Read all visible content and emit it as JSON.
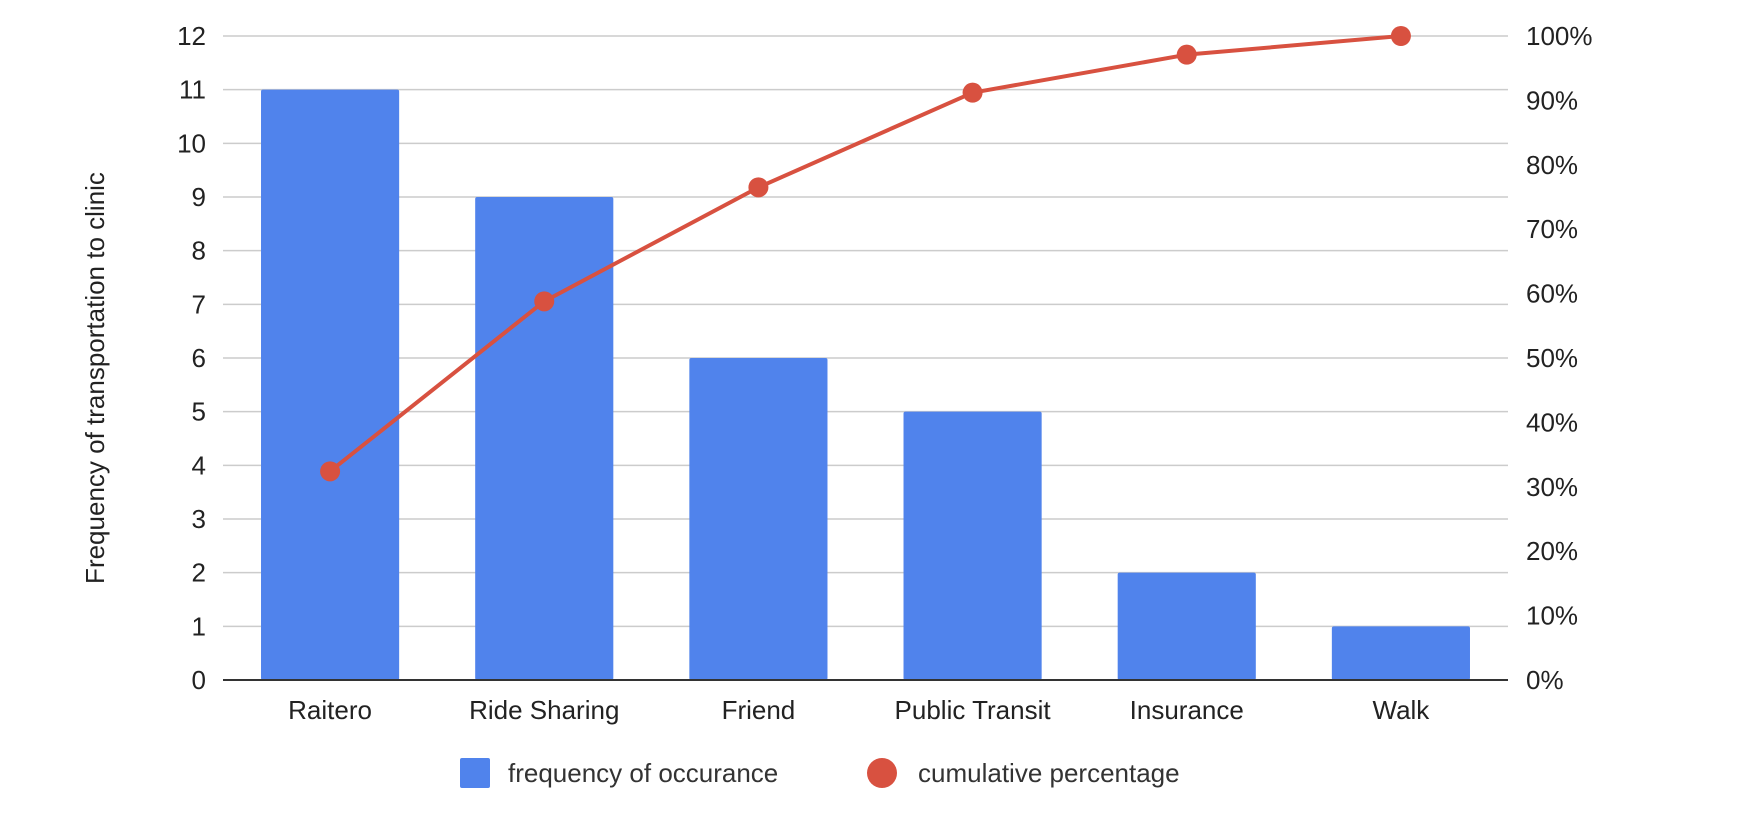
{
  "chart_data": {
    "type": "bar",
    "categories": [
      "Raitero",
      "Ride Sharing",
      "Friend",
      "Public Transit",
      "Insurance",
      "Walk"
    ],
    "series": [
      {
        "name": "frequency of occurance",
        "type": "bar",
        "axis": "left",
        "color": "#5083ec",
        "values": [
          11,
          9,
          6,
          5,
          2,
          1
        ]
      },
      {
        "name": "cumulative percentage",
        "type": "line",
        "axis": "right",
        "color": "#d85140",
        "values": [
          32.4,
          58.8,
          76.5,
          91.2,
          97.1,
          100
        ]
      }
    ],
    "title": "",
    "xlabel": "",
    "ylabel": "Frequency of transportation to clinic",
    "ylim": [
      0,
      12
    ],
    "y_ticks": [
      "0",
      "1",
      "2",
      "3",
      "4",
      "5",
      "6",
      "7",
      "8",
      "9",
      "10",
      "11",
      "12"
    ],
    "y2lim": [
      0,
      100
    ],
    "y2_ticks": [
      "0%",
      "10%",
      "20%",
      "30%",
      "40%",
      "50%",
      "60%",
      "70%",
      "80%",
      "90%",
      "100%"
    ],
    "grid": true,
    "legend": "bottom"
  }
}
